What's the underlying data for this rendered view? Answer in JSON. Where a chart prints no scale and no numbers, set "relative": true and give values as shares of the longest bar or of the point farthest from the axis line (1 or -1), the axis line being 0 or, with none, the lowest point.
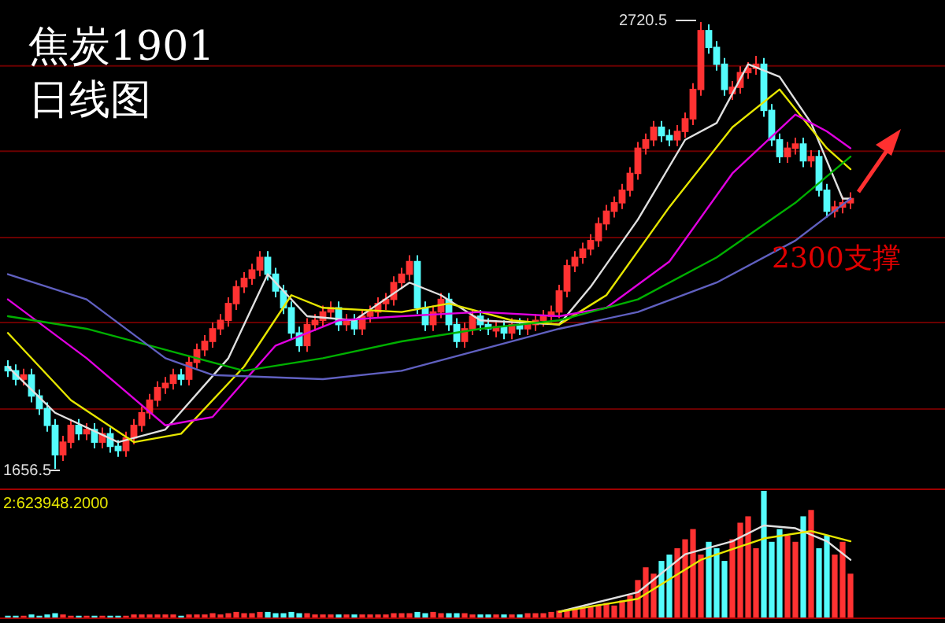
{
  "chart_data": [
    {
      "type": "candlestick",
      "title": "焦炭1901",
      "subtitle": "日线图",
      "categories": [
        null,
        null,
        null,
        null,
        null,
        null,
        null,
        null,
        null,
        null,
        null,
        null,
        null,
        null,
        null,
        null,
        null,
        null,
        null,
        null,
        null,
        null,
        null,
        null,
        null,
        null,
        null,
        null,
        null,
        null,
        null,
        null,
        null,
        null,
        null,
        null,
        null,
        null,
        null,
        null,
        null,
        null,
        null,
        null,
        null,
        null,
        null,
        null,
        null,
        null,
        null,
        null,
        null,
        null,
        null,
        null,
        null,
        null,
        null,
        null,
        null,
        null,
        null,
        null,
        null,
        null,
        null,
        null,
        null,
        null,
        null,
        null,
        null,
        null,
        null,
        null,
        null,
        null,
        null,
        null,
        null,
        null,
        null,
        null,
        null,
        null,
        null,
        null,
        null,
        null,
        null,
        null,
        null,
        null,
        null,
        null,
        null,
        null,
        null,
        null,
        null,
        null,
        null,
        null,
        null,
        null,
        null,
        null
      ],
      "ohlc": [
        [
          1900,
          1915,
          1875,
          1890
        ],
        [
          1890,
          1905,
          1855,
          1870
        ],
        [
          1870,
          1895,
          1855,
          1880
        ],
        [
          1880,
          1895,
          1815,
          1830
        ],
        [
          1830,
          1845,
          1785,
          1800
        ],
        [
          1800,
          1815,
          1745,
          1760
        ],
        [
          1760,
          1775,
          1656.5,
          1690
        ],
        [
          1690,
          1735,
          1675,
          1720
        ],
        [
          1720,
          1775,
          1705,
          1760
        ],
        [
          1760,
          1775,
          1725,
          1740
        ],
        [
          1740,
          1765,
          1725,
          1750
        ],
        [
          1750,
          1765,
          1705,
          1720
        ],
        [
          1720,
          1755,
          1705,
          1740
        ],
        [
          1740,
          1755,
          1695,
          1710
        ],
        [
          1710,
          1725,
          1685,
          1700
        ],
        [
          1700,
          1745,
          1685,
          1730
        ],
        [
          1730,
          1775,
          1715,
          1760
        ],
        [
          1760,
          1805,
          1745,
          1790
        ],
        [
          1790,
          1835,
          1775,
          1820
        ],
        [
          1820,
          1865,
          1805,
          1850
        ],
        [
          1850,
          1875,
          1835,
          1860
        ],
        [
          1860,
          1895,
          1845,
          1880
        ],
        [
          1880,
          1895,
          1855,
          1870
        ],
        [
          1870,
          1925,
          1855,
          1910
        ],
        [
          1910,
          1955,
          1895,
          1940
        ],
        [
          1940,
          1975,
          1925,
          1960
        ],
        [
          1960,
          2005,
          1945,
          1990
        ],
        [
          1990,
          2025,
          1975,
          2010
        ],
        [
          2010,
          2065,
          1995,
          2050
        ],
        [
          2050,
          2105,
          2035,
          2090
        ],
        [
          2090,
          2125,
          2075,
          2110
        ],
        [
          2110,
          2145,
          2095,
          2130
        ],
        [
          2130,
          2175,
          2115,
          2160
        ],
        [
          2160,
          2175,
          2105,
          2120
        ],
        [
          2120,
          2135,
          2065,
          2080
        ],
        [
          2080,
          2095,
          2025,
          2040
        ],
        [
          2040,
          2055,
          1965,
          1980
        ],
        [
          1980,
          1995,
          1935,
          1950
        ],
        [
          1950,
          2015,
          1935,
          2000
        ],
        [
          2000,
          2025,
          1985,
          2010
        ],
        [
          2010,
          2045,
          1995,
          2030
        ],
        [
          2030,
          2055,
          2015,
          2040
        ],
        [
          2040,
          2055,
          1985,
          2000
        ],
        [
          2000,
          2025,
          1985,
          2010
        ],
        [
          2010,
          2025,
          1975,
          1990
        ],
        [
          1990,
          2035,
          1975,
          2020
        ],
        [
          2020,
          2045,
          2005,
          2030
        ],
        [
          2030,
          2065,
          2015,
          2050
        ],
        [
          2050,
          2075,
          2035,
          2060
        ],
        [
          2060,
          2115,
          2045,
          2100
        ],
        [
          2100,
          2135,
          2085,
          2120
        ],
        [
          2120,
          2165,
          2105,
          2150
        ],
        [
          2150,
          2165,
          2025,
          2040
        ],
        [
          2040,
          2055,
          1985,
          2000
        ],
        [
          2000,
          2045,
          1985,
          2030
        ],
        [
          2030,
          2075,
          2015,
          2060
        ],
        [
          2060,
          2075,
          1985,
          2000
        ],
        [
          2000,
          2015,
          1945,
          1960
        ],
        [
          1960,
          2005,
          1945,
          1990
        ],
        [
          1990,
          2035,
          1975,
          2020
        ],
        [
          2020,
          2035,
          1985,
          2000
        ],
        [
          2000,
          2015,
          1975,
          1990
        ],
        [
          1985,
          2010,
          1970,
          1995
        ],
        [
          1995,
          2010,
          1965,
          1980
        ],
        [
          1980,
          2015,
          1965,
          2000
        ],
        [
          2000,
          2015,
          1975,
          1990
        ],
        [
          1990,
          2015,
          1975,
          2000
        ],
        [
          2000,
          2025,
          1985,
          2010
        ],
        [
          2010,
          2035,
          1995,
          2020
        ],
        [
          2020,
          2045,
          2005,
          2030
        ],
        [
          2030,
          2095,
          2015,
          2080
        ],
        [
          2080,
          2155,
          2065,
          2140
        ],
        [
          2140,
          2175,
          2125,
          2160
        ],
        [
          2160,
          2195,
          2145,
          2180
        ],
        [
          2180,
          2215,
          2165,
          2200
        ],
        [
          2200,
          2255,
          2185,
          2240
        ],
        [
          2240,
          2285,
          2225,
          2270
        ],
        [
          2270,
          2305,
          2255,
          2290
        ],
        [
          2290,
          2335,
          2275,
          2320
        ],
        [
          2320,
          2375,
          2305,
          2360
        ],
        [
          2360,
          2435,
          2345,
          2420
        ],
        [
          2420,
          2455,
          2405,
          2440
        ],
        [
          2440,
          2485,
          2425,
          2470
        ],
        [
          2470,
          2485,
          2435,
          2450
        ],
        [
          2450,
          2465,
          2425,
          2440
        ],
        [
          2440,
          2475,
          2425,
          2460
        ],
        [
          2460,
          2505,
          2445,
          2490
        ],
        [
          2490,
          2575,
          2475,
          2560
        ],
        [
          2560,
          2720.5,
          2545,
          2700
        ],
        [
          2700,
          2715,
          2645,
          2660
        ],
        [
          2660,
          2675,
          2605,
          2620
        ],
        [
          2620,
          2635,
          2545,
          2560
        ],
        [
          2550,
          2580,
          2535,
          2565
        ],
        [
          2565,
          2615,
          2550,
          2600
        ],
        [
          2600,
          2625,
          2585,
          2610
        ],
        [
          2610,
          2640,
          2595,
          2620
        ],
        [
          2620,
          2635,
          2495,
          2510
        ],
        [
          2510,
          2525,
          2425,
          2440
        ],
        [
          2440,
          2455,
          2385,
          2400
        ],
        [
          2400,
          2435,
          2385,
          2420
        ],
        [
          2420,
          2445,
          2405,
          2430
        ],
        [
          2430,
          2445,
          2375,
          2390
        ],
        [
          2390,
          2415,
          2375,
          2400
        ],
        [
          2400,
          2415,
          2305,
          2320
        ],
        [
          2320,
          2335,
          2255,
          2270
        ],
        [
          2270,
          2295,
          2255,
          2280
        ],
        [
          2280,
          2305,
          2265,
          2290
        ],
        [
          2290,
          2315,
          2275,
          2300
        ]
      ],
      "colors": [
        "#54fcfc",
        "#54fcfc",
        "#ff3232",
        "#54fcfc",
        "#54fcfc",
        "#54fcfc",
        "#54fcfc",
        "#ff3232",
        "#ff3232",
        "#54fcfc",
        "#ff3232",
        "#54fcfc",
        "#ff3232",
        "#54fcfc",
        "#54fcfc",
        "#ff3232",
        "#ff3232",
        "#ff3232",
        "#ff3232",
        "#ff3232",
        "#ff3232",
        "#ff3232",
        "#54fcfc",
        "#ff3232",
        "#ff3232",
        "#ff3232",
        "#ff3232",
        "#ff3232",
        "#ff3232",
        "#ff3232",
        "#ff3232",
        "#ff3232",
        "#ff3232",
        "#54fcfc",
        "#54fcfc",
        "#54fcfc",
        "#54fcfc",
        "#54fcfc",
        "#ff3232",
        "#ff3232",
        "#ff3232",
        "#ff3232",
        "#54fcfc",
        "#ff3232",
        "#54fcfc",
        "#ff3232",
        "#ff3232",
        "#ff3232",
        "#ff3232",
        "#ff3232",
        "#ff3232",
        "#ff3232",
        "#54fcfc",
        "#54fcfc",
        "#ff3232",
        "#ff3232",
        "#54fcfc",
        "#54fcfc",
        "#ff3232",
        "#ff3232",
        "#54fcfc",
        "#54fcfc",
        "#ff3232",
        "#54fcfc",
        "#ff3232",
        "#54fcfc",
        "#ff3232",
        "#ff3232",
        "#ff3232",
        "#ff3232",
        "#ff3232",
        "#ff3232",
        "#ff3232",
        "#ff3232",
        "#ff3232",
        "#ff3232",
        "#ff3232",
        "#ff3232",
        "#ff3232",
        "#ff3232",
        "#ff3232",
        "#ff3232",
        "#ff3232",
        "#54fcfc",
        "#54fcfc",
        "#ff3232",
        "#ff3232",
        "#ff3232",
        "#ff3232",
        "#54fcfc",
        "#54fcfc",
        "#54fcfc",
        "#ff3232",
        "#ff3232",
        "#ff3232",
        "#ff3232",
        "#54fcfc",
        "#54fcfc",
        "#54fcfc",
        "#ff3232",
        "#ff3232",
        "#54fcfc",
        "#ff3232",
        "#54fcfc",
        "#54fcfc",
        "#ff3232",
        "#ff3232",
        "#ff3232"
      ],
      "yticks": [
        {
          "value": 1799,
          "label": null
        },
        {
          "value": 2005,
          "label": null
        },
        {
          "value": 2207,
          "label": null
        },
        {
          "value": 2413,
          "label": null
        },
        {
          "value": 2616,
          "label": null
        }
      ],
      "grid": "y",
      "series": [
        {
          "type": "line",
          "color": "#e0e0e0",
          "values": [
            1900,
            null,
            null,
            null,
            null,
            null,
            1790,
            null,
            null,
            null,
            null,
            null,
            null,
            null,
            1720,
            null,
            null,
            null,
            null,
            null,
            1750,
            null,
            null,
            null,
            null,
            null,
            null,
            null,
            1920,
            null,
            null,
            null,
            null,
            2120,
            null,
            null,
            null,
            null,
            2020,
            null,
            null,
            null,
            null,
            null,
            2010,
            null,
            null,
            null,
            null,
            null,
            null,
            2100,
            null,
            null,
            null,
            2070,
            null,
            null,
            null,
            null,
            2010,
            null,
            null,
            null,
            null,
            null,
            null,
            null,
            null,
            null,
            2000,
            null,
            null,
            null,
            2090,
            null,
            null,
            null,
            null,
            null,
            2250,
            null,
            null,
            null,
            null,
            null,
            2440,
            null,
            null,
            null,
            2480,
            null,
            null,
            null,
            2620,
            null,
            null,
            null,
            2590,
            null,
            null,
            null,
            2480,
            null,
            null,
            null,
            2300,
            2300
          ]
        },
        {
          "type": "line",
          "color": "#e6e600",
          "values": [
            1980,
            null,
            null,
            null,
            null,
            null,
            null,
            null,
            1820,
            null,
            null,
            null,
            null,
            null,
            null,
            null,
            1720,
            null,
            null,
            null,
            null,
            null,
            1740,
            null,
            null,
            null,
            null,
            null,
            null,
            null,
            1900,
            null,
            null,
            null,
            null,
            null,
            2070,
            null,
            null,
            null,
            2040,
            null,
            null,
            null,
            null,
            null,
            null,
            null,
            null,
            null,
            2030,
            null,
            null,
            null,
            null,
            null,
            2050,
            null,
            null,
            null,
            null,
            null,
            null,
            null,
            2010,
            null,
            null,
            null,
            null,
            null,
            2000,
            null,
            null,
            null,
            null,
            null,
            2070,
            null,
            null,
            null,
            null,
            null,
            null,
            null,
            2280,
            null,
            null,
            null,
            null,
            null,
            null,
            null,
            2470,
            null,
            null,
            null,
            null,
            null,
            2560,
            null,
            null,
            null,
            null,
            null,
            2420,
            null,
            null,
            2370
          ]
        },
        {
          "type": "line",
          "color": "#e000e0",
          "values": [
            2060,
            null,
            null,
            null,
            null,
            null,
            null,
            null,
            null,
            null,
            1920,
            null,
            null,
            null,
            null,
            null,
            null,
            null,
            null,
            null,
            1760,
            null,
            null,
            null,
            null,
            null,
            1780,
            null,
            null,
            null,
            null,
            null,
            null,
            null,
            1950,
            null,
            null,
            null,
            null,
            null,
            null,
            null,
            2010,
            null,
            null,
            null,
            null,
            null,
            null,
            null,
            2020,
            null,
            null,
            null,
            null,
            null,
            null,
            null,
            null,
            null,
            2030,
            null,
            null,
            null,
            null,
            null,
            null,
            null,
            null,
            null,
            2020,
            null,
            null,
            null,
            null,
            null,
            2040,
            null,
            null,
            null,
            null,
            null,
            null,
            null,
            2150,
            null,
            null,
            null,
            null,
            null,
            null,
            null,
            2360,
            null,
            null,
            null,
            null,
            null,
            null,
            null,
            2500,
            null,
            null,
            null,
            2460,
            null,
            null,
            2420
          ]
        },
        {
          "type": "line",
          "color": "#00b000",
          "values": [
            2020,
            null,
            null,
            null,
            null,
            null,
            null,
            null,
            null,
            null,
            1990,
            null,
            null,
            null,
            null,
            null,
            null,
            null,
            null,
            null,
            1940,
            null,
            null,
            null,
            null,
            null,
            null,
            null,
            null,
            null,
            1890,
            null,
            null,
            null,
            null,
            null,
            null,
            null,
            null,
            null,
            1920,
            null,
            null,
            null,
            null,
            null,
            null,
            null,
            null,
            null,
            1960,
            null,
            null,
            null,
            null,
            null,
            null,
            null,
            null,
            null,
            1990,
            null,
            null,
            null,
            null,
            null,
            null,
            null,
            null,
            null,
            2010,
            null,
            null,
            null,
            null,
            null,
            null,
            null,
            null,
            null,
            2060,
            null,
            null,
            null,
            null,
            null,
            null,
            null,
            null,
            null,
            2160,
            null,
            null,
            null,
            null,
            null,
            null,
            null,
            null,
            null,
            2290,
            null,
            null,
            null,
            null,
            null,
            null,
            2400
          ]
        },
        {
          "type": "line",
          "color": "#6060c0",
          "values": [
            2120,
            null,
            null,
            null,
            null,
            null,
            null,
            null,
            null,
            null,
            2060,
            null,
            null,
            null,
            null,
            null,
            null,
            null,
            null,
            null,
            1920,
            null,
            null,
            null,
            null,
            null,
            1880,
            null,
            null,
            null,
            null,
            null,
            null,
            null,
            null,
            null,
            null,
            null,
            null,
            null,
            1870,
            null,
            null,
            null,
            null,
            null,
            null,
            null,
            null,
            null,
            1890,
            null,
            null,
            null,
            null,
            null,
            null,
            null,
            null,
            null,
            1940,
            null,
            null,
            null,
            null,
            null,
            null,
            null,
            null,
            null,
            1990,
            null,
            null,
            null,
            null,
            null,
            null,
            null,
            null,
            null,
            2030,
            null,
            null,
            null,
            null,
            null,
            null,
            null,
            null,
            null,
            2100,
            null,
            null,
            null,
            null,
            null,
            null,
            null,
            null,
            null,
            2200,
            null,
            null,
            null,
            null,
            null,
            null,
            2300
          ]
        }
      ],
      "annotations": [
        "2720.5",
        "1656.5",
        "2300支撑"
      ]
    },
    {
      "type": "bar",
      "relative": true,
      "categories": [
        null,
        null,
        null,
        null,
        null,
        null,
        null,
        null,
        null,
        null,
        null,
        null,
        null,
        null,
        null,
        null,
        null,
        null,
        null,
        null,
        null,
        null,
        null,
        null,
        null,
        null,
        null,
        null,
        null,
        null,
        null,
        null,
        null,
        null,
        null,
        null,
        null,
        null,
        null,
        null,
        null,
        null,
        null,
        null,
        null,
        null,
        null,
        null,
        null,
        null,
        null,
        null,
        null,
        null,
        null,
        null,
        null,
        null,
        null,
        null,
        null,
        null,
        null,
        null,
        null,
        null,
        null,
        null,
        null,
        null,
        null,
        null,
        null,
        null,
        null,
        null,
        null,
        null,
        null,
        null,
        null,
        null,
        null,
        null,
        null,
        null,
        null,
        null,
        null,
        null,
        null,
        null,
        null,
        null,
        null,
        null,
        null,
        null,
        null,
        null,
        null,
        null,
        null,
        null,
        null,
        null,
        null,
        null
      ],
      "series": [
        {
          "type": "bar",
          "values": [
            0.02,
            0.02,
            0.02,
            0.03,
            0.02,
            0.03,
            0.04,
            0.03,
            0.02,
            0.02,
            0.02,
            0.02,
            0.02,
            0.02,
            0.02,
            0.02,
            0.03,
            0.03,
            0.03,
            0.03,
            0.03,
            0.03,
            0.02,
            0.03,
            0.03,
            0.03,
            0.04,
            0.03,
            0.04,
            0.05,
            0.04,
            0.04,
            0.05,
            0.05,
            0.04,
            0.04,
            0.05,
            0.04,
            0.04,
            0.03,
            0.03,
            0.03,
            0.03,
            0.03,
            0.03,
            0.03,
            0.03,
            0.03,
            0.03,
            0.04,
            0.04,
            0.04,
            0.05,
            0.04,
            0.05,
            0.04,
            0.04,
            0.04,
            0.04,
            0.03,
            0.03,
            0.03,
            0.03,
            0.03,
            0.03,
            0.03,
            0.04,
            0.04,
            0.04,
            0.05,
            0.06,
            0.07,
            0.08,
            0.08,
            0.09,
            0.1,
            0.12,
            0.1,
            0.14,
            0.18,
            0.3,
            0.4,
            0.35,
            0.45,
            0.5,
            0.55,
            0.62,
            0.7,
            0.5,
            0.6,
            0.55,
            0.45,
            0.62,
            0.75,
            0.8,
            0.55,
            1,
            0.6,
            0.7,
            0.65,
            0.6,
            0.8,
            0.85,
            0.55,
            0.65,
            0.5,
            0.6,
            0.35
          ],
          "colors": [
            "#54fcfc",
            "#54fcfc",
            "#ff3232",
            "#54fcfc",
            "#54fcfc",
            "#54fcfc",
            "#54fcfc",
            "#ff3232",
            "#ff3232",
            "#54fcfc",
            "#ff3232",
            "#54fcfc",
            "#ff3232",
            "#54fcfc",
            "#54fcfc",
            "#ff3232",
            "#ff3232",
            "#ff3232",
            "#ff3232",
            "#ff3232",
            "#ff3232",
            "#ff3232",
            "#54fcfc",
            "#ff3232",
            "#ff3232",
            "#ff3232",
            "#ff3232",
            "#ff3232",
            "#ff3232",
            "#ff3232",
            "#ff3232",
            "#ff3232",
            "#ff3232",
            "#54fcfc",
            "#54fcfc",
            "#54fcfc",
            "#54fcfc",
            "#54fcfc",
            "#ff3232",
            "#ff3232",
            "#ff3232",
            "#ff3232",
            "#54fcfc",
            "#ff3232",
            "#54fcfc",
            "#ff3232",
            "#ff3232",
            "#ff3232",
            "#ff3232",
            "#ff3232",
            "#ff3232",
            "#ff3232",
            "#54fcfc",
            "#54fcfc",
            "#ff3232",
            "#ff3232",
            "#54fcfc",
            "#54fcfc",
            "#ff3232",
            "#ff3232",
            "#54fcfc",
            "#54fcfc",
            "#ff3232",
            "#54fcfc",
            "#ff3232",
            "#54fcfc",
            "#ff3232",
            "#ff3232",
            "#ff3232",
            "#ff3232",
            "#ff3232",
            "#ff3232",
            "#ff3232",
            "#ff3232",
            "#ff3232",
            "#ff3232",
            "#ff3232",
            "#ff3232",
            "#ff3232",
            "#ff3232",
            "#ff3232",
            "#ff3232",
            "#ff3232",
            "#54fcfc",
            "#54fcfc",
            "#ff3232",
            "#ff3232",
            "#ff3232",
            "#ff3232",
            "#54fcfc",
            "#54fcfc",
            "#54fcfc",
            "#ff3232",
            "#ff3232",
            "#ff3232",
            "#ff3232",
            "#54fcfc",
            "#54fcfc",
            "#54fcfc",
            "#ff3232",
            "#ff3232",
            "#54fcfc",
            "#ff3232",
            "#54fcfc",
            "#54fcfc",
            "#ff3232",
            "#ff3232",
            "#ff3232"
          ]
        }
      ],
      "annotations": [
        "2:623948.2000"
      ]
    },
    {
      "type": "line",
      "relative": true,
      "categories": [
        null,
        null,
        null,
        null,
        null,
        null,
        null,
        null,
        null,
        null,
        null,
        null,
        null,
        null,
        null,
        null,
        null,
        null,
        null,
        null,
        null,
        null,
        null,
        null,
        null,
        null,
        null,
        null,
        null,
        null,
        null,
        null,
        null,
        null,
        null,
        null,
        null,
        null,
        null,
        null,
        null,
        null,
        null,
        null,
        null,
        null,
        null,
        null,
        null,
        null,
        null,
        null,
        null,
        null,
        null,
        null,
        null,
        null,
        null,
        null,
        null,
        null,
        null,
        null,
        null,
        null,
        null,
        null,
        null,
        null,
        null,
        null,
        null,
        null,
        null,
        null,
        null,
        null,
        null,
        null,
        null,
        null,
        null,
        null,
        null,
        null,
        null,
        null,
        null,
        null,
        null,
        null,
        null,
        null,
        null,
        null,
        null,
        null,
        null,
        null,
        null,
        null,
        null,
        null,
        null,
        null,
        null,
        null
      ],
      "series": [
        {
          "color": "#e0e0e0",
          "values": [
            null,
            null,
            null,
            null,
            null,
            null,
            null,
            null,
            null,
            null,
            null,
            null,
            null,
            null,
            null,
            null,
            null,
            null,
            null,
            null,
            null,
            null,
            null,
            null,
            null,
            null,
            null,
            null,
            null,
            null,
            null,
            null,
            null,
            null,
            null,
            null,
            null,
            null,
            null,
            null,
            null,
            null,
            null,
            null,
            null,
            null,
            null,
            null,
            null,
            null,
            null,
            null,
            null,
            null,
            null,
            null,
            null,
            null,
            null,
            null,
            null,
            null,
            null,
            null,
            null,
            null,
            null,
            null,
            null,
            null,
            0.07,
            null,
            null,
            null,
            null,
            null,
            null,
            null,
            null,
            null,
            0.28,
            null,
            null,
            null,
            null,
            null,
            0.69,
            null,
            null,
            null,
            null,
            null,
            0.83,
            null,
            null,
            null,
            1,
            null,
            null,
            null,
            0.97,
            null,
            null,
            null,
            0.83,
            null,
            null,
            0.63
          ]
        },
        {
          "color": "#e6e600",
          "values": [
            null,
            null,
            null,
            null,
            null,
            null,
            null,
            null,
            null,
            null,
            null,
            null,
            null,
            null,
            null,
            null,
            null,
            null,
            null,
            null,
            null,
            null,
            null,
            null,
            null,
            null,
            null,
            null,
            null,
            null,
            null,
            null,
            null,
            null,
            null,
            null,
            null,
            null,
            null,
            null,
            null,
            null,
            null,
            null,
            null,
            null,
            null,
            null,
            null,
            null,
            null,
            null,
            null,
            null,
            null,
            null,
            null,
            null,
            null,
            null,
            null,
            null,
            null,
            null,
            null,
            null,
            null,
            null,
            null,
            null,
            0.07,
            null,
            null,
            null,
            null,
            null,
            null,
            null,
            null,
            null,
            0.21,
            null,
            null,
            null,
            null,
            null,
            null,
            null,
            0.63,
            null,
            null,
            null,
            null,
            null,
            null,
            null,
            0.86,
            null,
            null,
            null,
            null,
            null,
            0.94,
            null,
            null,
            null,
            null,
            0.83
          ]
        }
      ]
    }
  ]
}
